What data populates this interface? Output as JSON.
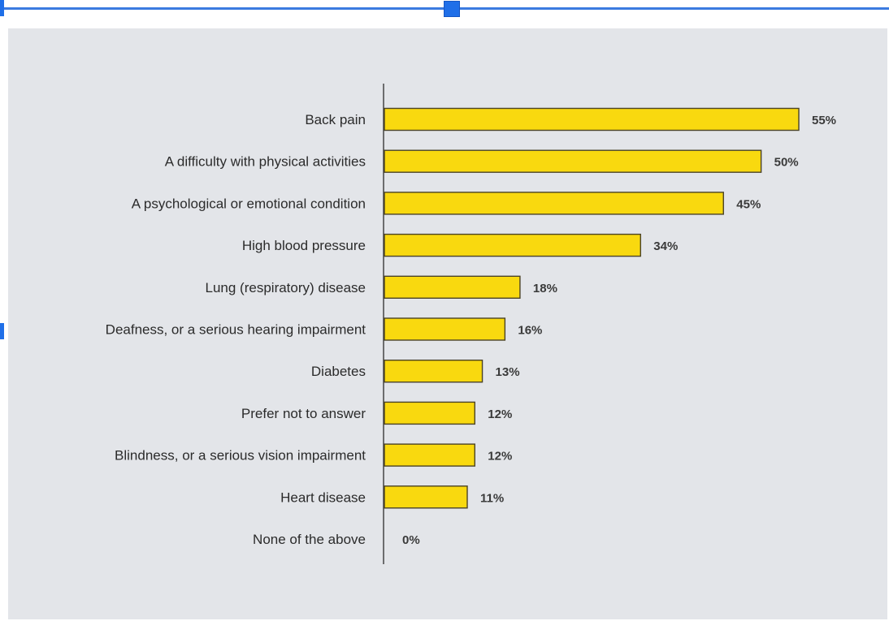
{
  "chart_data": {
    "type": "bar",
    "orientation": "horizontal",
    "categories": [
      "Back pain",
      "A difficulty with physical activities",
      "A psychological or emotional condition",
      "High blood pressure",
      "Lung (respiratory) disease",
      "Deafness, or a serious hearing impairment",
      "Diabetes",
      "Prefer not to answer",
      "Blindness, or a serious vision impairment",
      "Heart disease",
      "None of the above"
    ],
    "values": [
      55,
      50,
      45,
      34,
      18,
      16,
      13,
      12,
      12,
      11,
      0
    ],
    "value_labels": [
      "55%",
      "50%",
      "45%",
      "34%",
      "18%",
      "16%",
      "13%",
      "12%",
      "12%",
      "11%",
      "0%"
    ],
    "title": "",
    "xlabel": "",
    "ylabel": "",
    "xlim": [
      0,
      60
    ],
    "grid": false,
    "legend": "none",
    "colors": {
      "bar_fill": "#f9d90f",
      "bar_stroke": "#4b4326",
      "background": "#e3e5e9"
    }
  }
}
